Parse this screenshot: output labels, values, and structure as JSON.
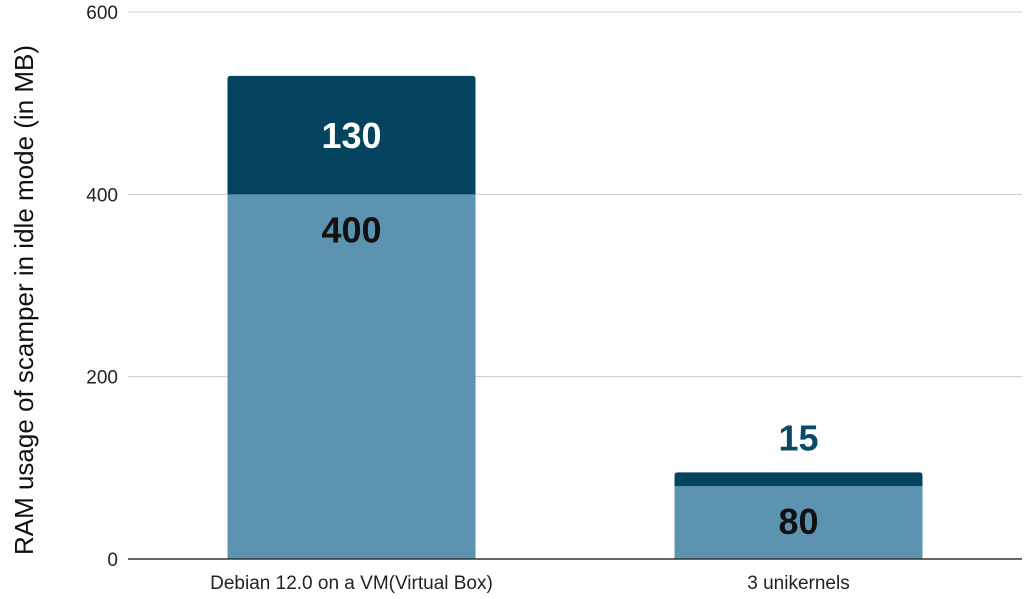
{
  "chart_data": {
    "type": "bar",
    "stacked": true,
    "categories": [
      "Debian 12.0 on a VM(Virtual Box)",
      "3 unikernels"
    ],
    "series": [
      {
        "values": [
          400,
          80
        ],
        "color": "#5b93b0",
        "label_color": "#111111",
        "label_position": "inside"
      },
      {
        "values": [
          130,
          15
        ],
        "color": "#03435e",
        "label_color": "#ffffff",
        "label_position": "inside-or-above",
        "outside_label_color": "#0b4a66"
      }
    ],
    "ylabel": "RAM usage of scamper in idle mode (in MB)",
    "xlabel": "",
    "ylim": [
      0,
      600
    ],
    "yticks": [
      0,
      200,
      400,
      600
    ],
    "grid": true,
    "legend": "none"
  }
}
